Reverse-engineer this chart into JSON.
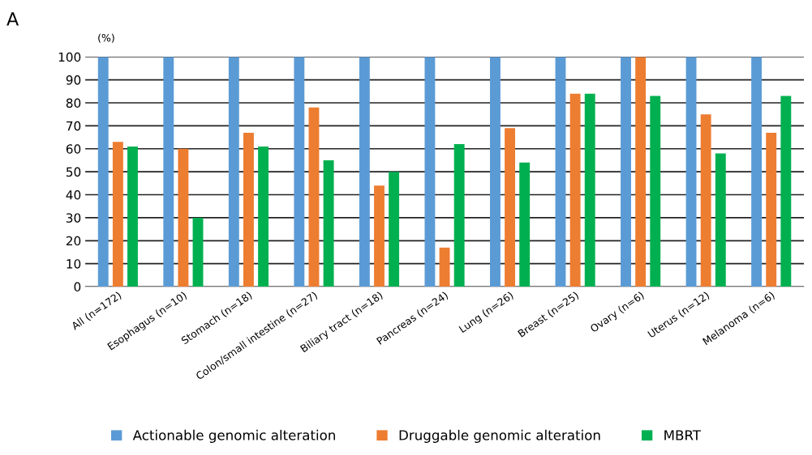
{
  "chart_data": {
    "type": "bar",
    "ylabel": "(%)",
    "annotations": [
      "A"
    ],
    "categories": [
      "All (n=172)",
      "Esophagus (n=10)",
      "Stomach (n=18)",
      "Colon/small intestine (n=27)",
      "Biliary tract (n=18)",
      "Pancreas (n=24)",
      "Lung (n=26)",
      "Breast (n=25)",
      "Ovary (n=6)",
      "Uterus (n=12)",
      "Melanoma (n=6)"
    ],
    "series": [
      {
        "name": "Actionable genomic alteration",
        "color": "#5b9bd5",
        "values": [
          100,
          100,
          100,
          100,
          100,
          100,
          100,
          100,
          100,
          100,
          100
        ]
      },
      {
        "name": "Druggable genomic alteration",
        "color": "#ed7d31",
        "values": [
          63,
          60,
          67,
          78,
          44,
          17,
          69,
          84,
          100,
          75,
          67
        ]
      },
      {
        "name": "MBRT",
        "color": "#00b050",
        "values": [
          61,
          30,
          61,
          55,
          50,
          62,
          54,
          84,
          83,
          58,
          83
        ]
      }
    ],
    "ylim": [
      0,
      100
    ],
    "yticks": [
      0,
      10,
      20,
      30,
      40,
      50,
      60,
      70,
      80,
      90,
      100
    ],
    "grid": "y",
    "legend": "bottom"
  }
}
